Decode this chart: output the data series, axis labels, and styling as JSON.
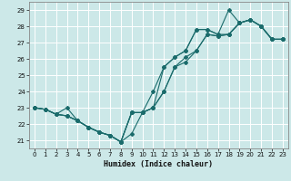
{
  "xlabel": "Humidex (Indice chaleur)",
  "background_color": "#cce8e8",
  "grid_color": "#b0d0d0",
  "line_color": "#1a6b6b",
  "xlim": [
    -0.5,
    23.5
  ],
  "ylim": [
    20.5,
    29.5
  ],
  "xticks": [
    0,
    1,
    2,
    3,
    4,
    5,
    6,
    7,
    8,
    9,
    10,
    11,
    12,
    13,
    14,
    15,
    16,
    17,
    18,
    19,
    20,
    21,
    22,
    23
  ],
  "yticks": [
    21,
    22,
    23,
    24,
    25,
    26,
    27,
    28,
    29
  ],
  "series": [
    [
      23.0,
      22.9,
      22.6,
      22.5,
      22.2,
      21.8,
      21.5,
      21.3,
      20.9,
      21.4,
      22.7,
      24.0,
      25.5,
      26.1,
      26.5,
      27.8,
      27.8,
      27.5,
      29.0,
      28.2,
      28.4,
      28.0,
      27.2,
      27.2
    ],
    [
      23.0,
      22.9,
      22.6,
      22.5,
      22.2,
      21.8,
      21.5,
      21.3,
      20.9,
      22.7,
      22.7,
      23.0,
      25.5,
      26.1,
      26.5,
      27.8,
      27.8,
      27.5,
      27.5,
      28.2,
      28.4,
      28.0,
      27.2,
      27.2
    ],
    [
      23.0,
      22.9,
      22.6,
      22.5,
      22.2,
      21.8,
      21.5,
      21.3,
      20.9,
      22.7,
      22.7,
      23.0,
      24.0,
      25.5,
      25.8,
      26.5,
      27.5,
      27.4,
      27.5,
      28.2,
      28.4,
      28.0,
      27.2,
      27.2
    ],
    [
      23.0,
      22.9,
      22.6,
      23.0,
      22.2,
      21.8,
      21.5,
      21.3,
      20.9,
      22.7,
      22.7,
      23.0,
      24.0,
      25.5,
      26.1,
      26.5,
      27.5,
      27.4,
      27.5,
      28.2,
      28.4,
      28.0,
      27.2,
      27.2
    ]
  ]
}
